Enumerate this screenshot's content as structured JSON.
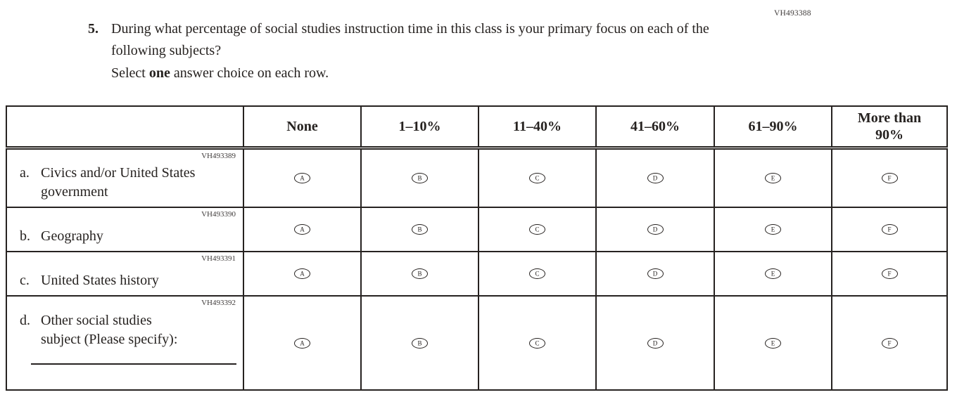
{
  "page": {
    "code": "VH493388"
  },
  "question": {
    "number": "5.",
    "text": "During what percentage of social studies instruction time in this class is your primary focus on each of the following subjects?",
    "instruction_prefix": "Select ",
    "instruction_bold": "one",
    "instruction_suffix": " answer choice on each row."
  },
  "table": {
    "columns": [
      "None",
      "1–10%",
      "11–40%",
      "41–60%",
      "61–90%",
      "More than\n90%"
    ],
    "option_letters": [
      "A",
      "B",
      "C",
      "D",
      "E",
      "F"
    ],
    "rows": [
      {
        "code": "VH493389",
        "letter": "a.",
        "label": "Civics and/or United States\ngovernment",
        "write_in": false
      },
      {
        "code": "VH493390",
        "letter": "b.",
        "label": "Geography",
        "write_in": false
      },
      {
        "code": "VH493391",
        "letter": "c.",
        "label": "United States history",
        "write_in": false
      },
      {
        "code": "VH493392",
        "letter": "d.",
        "label": "Other social studies\nsubject (Please specify):",
        "write_in": true
      }
    ]
  }
}
